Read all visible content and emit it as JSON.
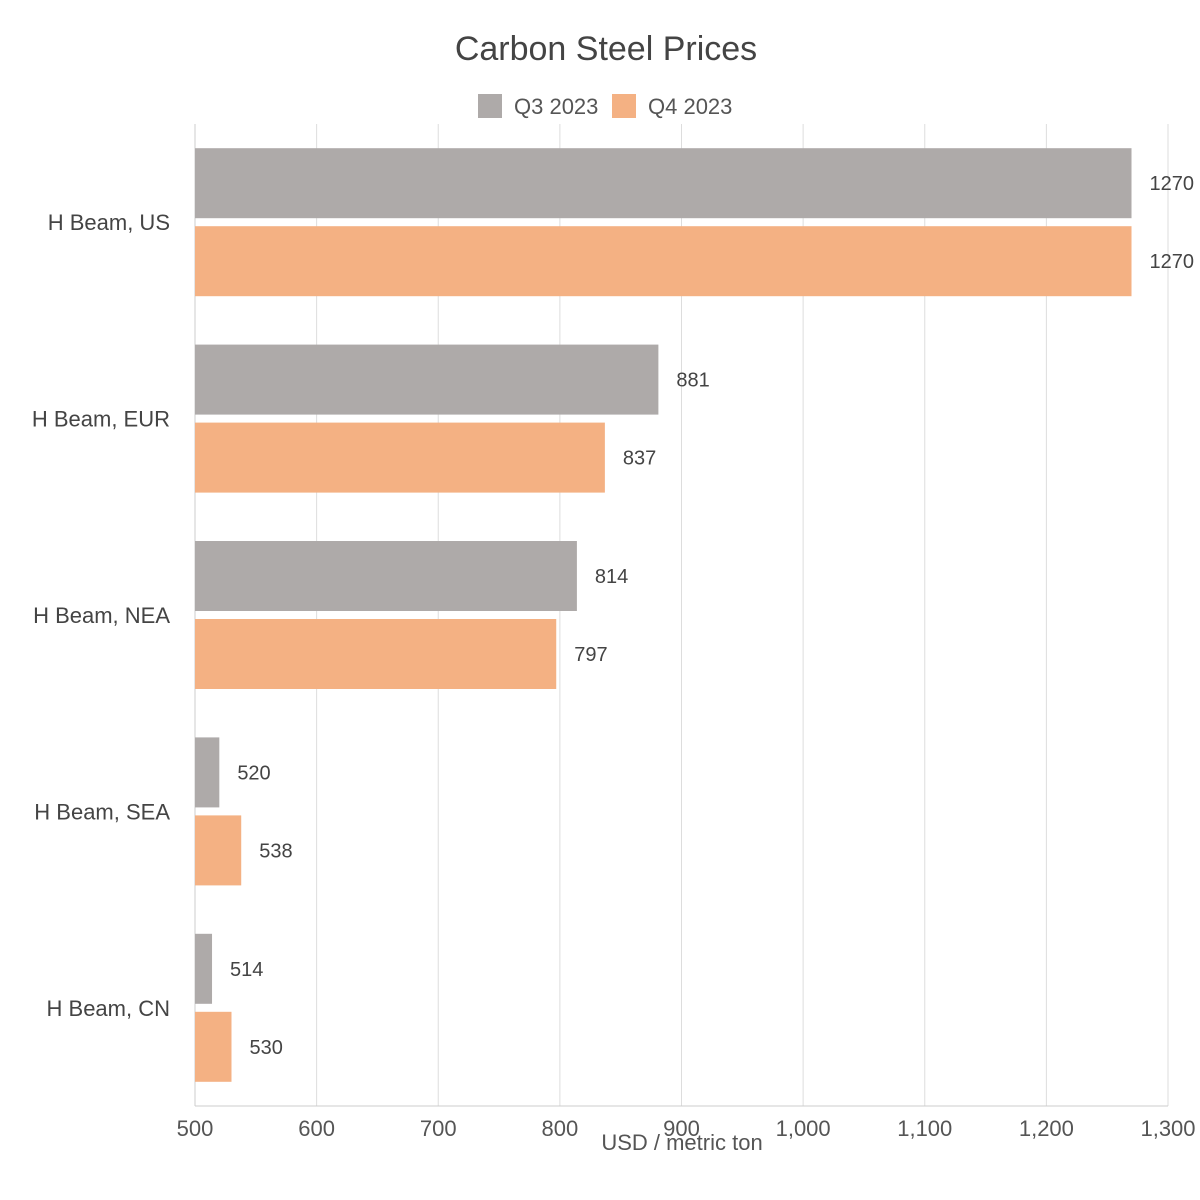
{
  "chart_data": {
    "type": "bar",
    "orientation": "horizontal",
    "title": "Carbon Steel Prices",
    "xlabel": "USD / metric ton",
    "ylabel": "",
    "categories": [
      "H Beam, US",
      "H Beam, EUR",
      "H Beam, NEA",
      "H Beam, SEA",
      "H Beam, CN"
    ],
    "series": [
      {
        "name": "Q3 2023",
        "color": "#aeaaa9",
        "values": [
          1270,
          881,
          814,
          520,
          514
        ]
      },
      {
        "name": "Q4 2023",
        "color": "#f4b183",
        "values": [
          1270,
          837,
          797,
          538,
          530
        ]
      }
    ],
    "xlim": [
      500,
      1300
    ],
    "xticks": [
      500,
      600,
      700,
      800,
      900,
      1000,
      1100,
      1200,
      1300
    ],
    "xtick_labels": [
      "500",
      "600",
      "700",
      "800",
      "900",
      "1,000",
      "1,100",
      "1,200",
      "1,300"
    ],
    "grid": true,
    "legend_position": "top-center"
  }
}
